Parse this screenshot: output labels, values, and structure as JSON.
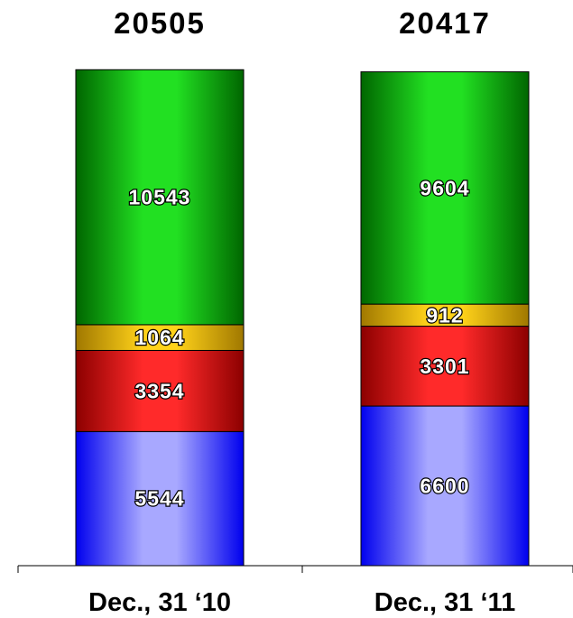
{
  "chart_data": {
    "type": "bar",
    "stacked": true,
    "categories": [
      "Dec., 31 ‘10",
      "Dec., 31 ‘11"
    ],
    "totals": [
      "20505",
      "20417"
    ],
    "series": [
      {
        "values": [
          5544,
          6600
        ],
        "color_light": "#a8a8ff",
        "color_dark": "#0000ee"
      },
      {
        "values": [
          3354,
          3301
        ],
        "color_light": "#ff2a2a",
        "color_dark": "#8c0000"
      },
      {
        "values": [
          1064,
          912
        ],
        "color_light": "#ffd21a",
        "color_dark": "#a07800"
      },
      {
        "values": [
          10543,
          9604
        ],
        "color_light": "#22e022",
        "color_dark": "#006600"
      }
    ],
    "ylim": [
      0,
      21000
    ],
    "grid": false,
    "legend": "none"
  }
}
